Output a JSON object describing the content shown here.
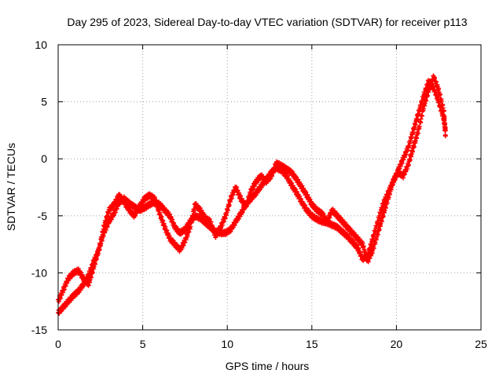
{
  "chart_data": {
    "type": "scatter",
    "title": "Day 295 of 2023, Sidereal Day-to-day VTEC variation (SDTVAR) for receiver p113",
    "xlabel": "GPS time / hours",
    "ylabel": "SDTVAR / TECUs",
    "xlim": [
      0,
      25
    ],
    "ylim": [
      -15,
      10
    ],
    "x_ticks": [
      0,
      5,
      10,
      15,
      20,
      25
    ],
    "y_ticks": [
      -15,
      -10,
      -5,
      0,
      5,
      10
    ],
    "x_tick_labels": [
      "0",
      "5",
      "10",
      "15",
      "20",
      "25"
    ],
    "y_tick_labels": [
      "-15",
      "-10",
      "-5",
      "0",
      "5",
      "10"
    ],
    "grid": true,
    "marker": "+",
    "series": [
      {
        "name": "SDTVAR",
        "color": "#ff0000",
        "x": [
          0.0,
          0.3,
          0.6,
          0.9,
          1.2,
          1.5,
          1.8,
          2.1,
          2.4,
          2.7,
          3.0,
          3.3,
          3.6,
          3.9,
          4.2,
          4.5,
          4.8,
          5.1,
          5.4,
          5.7,
          6.0,
          6.3,
          6.6,
          6.9,
          7.2,
          7.5,
          7.8,
          8.1,
          8.4,
          8.7,
          9.0,
          9.3,
          9.6,
          9.9,
          10.2,
          10.5,
          10.8,
          11.1,
          11.4,
          11.7,
          12.0,
          12.3,
          12.6,
          12.9,
          13.2,
          13.5,
          13.8,
          14.1,
          14.4,
          14.7,
          15.0,
          15.3,
          15.6,
          15.9,
          16.2,
          16.5,
          16.8,
          17.1,
          17.4,
          17.7,
          18.0,
          18.3,
          18.6,
          18.9,
          19.2,
          19.5,
          19.8,
          20.1,
          20.4,
          20.7,
          21.0,
          21.3,
          21.6,
          21.9,
          22.2,
          22.5,
          22.8,
          22.9
        ],
        "y": [
          -13.5,
          -13.0,
          -12.5,
          -12.0,
          -11.6,
          -11.0,
          -10.2,
          -9.0,
          -8.0,
          -6.5,
          -5.5,
          -4.8,
          -3.8,
          -3.5,
          -3.9,
          -4.2,
          -4.5,
          -4.3,
          -4.0,
          -3.8,
          -4.0,
          -4.5,
          -5.0,
          -6.0,
          -6.5,
          -6.2,
          -5.5,
          -5.0,
          -5.2,
          -5.6,
          -6.0,
          -6.4,
          -6.5,
          -6.5,
          -6.2,
          -5.5,
          -4.8,
          -4.0,
          -3.5,
          -3.0,
          -2.4,
          -1.8,
          -1.2,
          -0.8,
          -1.0,
          -1.5,
          -2.3,
          -3.0,
          -3.8,
          -4.5,
          -5.0,
          -5.3,
          -5.5,
          -5.6,
          -5.8,
          -6.0,
          -6.4,
          -6.8,
          -7.3,
          -7.8,
          -8.8,
          -8.5,
          -7.0,
          -5.5,
          -4.0,
          -3.0,
          -2.0,
          -1.0,
          0.0,
          1.0,
          2.5,
          4.0,
          5.5,
          6.8,
          6.2,
          5.0,
          3.5,
          2.5
        ],
        "x_alt": [
          0.0,
          0.3,
          0.6,
          0.9,
          1.2,
          1.5,
          1.8,
          2.1,
          2.4,
          2.7,
          3.0,
          3.3,
          3.6,
          3.9,
          4.2,
          4.5,
          4.8,
          5.1,
          5.4,
          5.7,
          6.0,
          6.3,
          6.6,
          6.9,
          7.2,
          7.5,
          7.8,
          8.1,
          8.4,
          8.7,
          9.0,
          9.3,
          9.6,
          9.9,
          10.2,
          10.5,
          10.8,
          11.1,
          11.4,
          11.7,
          12.0,
          12.3,
          12.6,
          12.9,
          13.2,
          13.5,
          13.8,
          14.1,
          14.4,
          14.7,
          15.0,
          15.3,
          15.6,
          15.9,
          16.2,
          16.5,
          16.8,
          17.1,
          17.4,
          17.7,
          18.0,
          18.3,
          18.6,
          18.9,
          19.2,
          19.5,
          19.8,
          20.1,
          20.4,
          20.7,
          21.0,
          21.3,
          21.6,
          21.9,
          22.2,
          22.5,
          22.8,
          22.9
        ],
        "y_alt": [
          -12.5,
          -11.5,
          -10.5,
          -10.0,
          -9.8,
          -10.5,
          -11.0,
          -9.5,
          -8.0,
          -6.0,
          -4.5,
          -4.0,
          -3.2,
          -3.8,
          -4.5,
          -5.0,
          -4.2,
          -3.5,
          -3.2,
          -3.5,
          -4.8,
          -6.0,
          -7.0,
          -7.5,
          -8.0,
          -7.2,
          -6.0,
          -4.0,
          -4.5,
          -5.2,
          -5.5,
          -6.8,
          -6.0,
          -5.0,
          -3.5,
          -2.5,
          -3.5,
          -4.2,
          -2.8,
          -2.0,
          -1.5,
          -2.0,
          -1.5,
          -0.4,
          -0.6,
          -0.9,
          -1.2,
          -1.8,
          -2.5,
          -3.2,
          -4.0,
          -4.5,
          -4.8,
          -5.5,
          -4.5,
          -5.0,
          -5.5,
          -6.0,
          -6.5,
          -7.0,
          -7.5,
          -9.0,
          -8.0,
          -6.5,
          -5.0,
          -3.5,
          -2.0,
          -1.2,
          -1.5,
          -0.5,
          1.0,
          2.5,
          4.5,
          6.0,
          7.2,
          6.0,
          4.2,
          2.0
        ]
      }
    ]
  }
}
